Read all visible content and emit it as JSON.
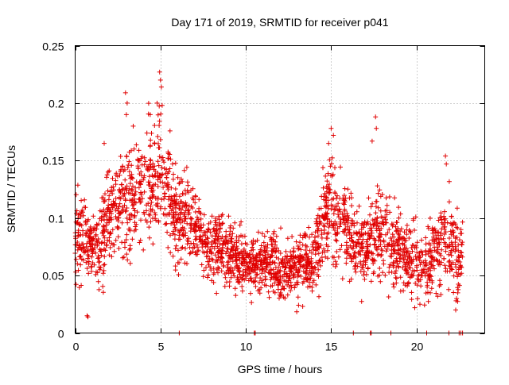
{
  "chart_data": {
    "type": "scatter",
    "title": "Day 171 of 2019, SRMTID for receiver p041",
    "xlabel": "GPS time / hours",
    "ylabel": "SRMTID / TECUs",
    "xlim": [
      0,
      24
    ],
    "ylim": [
      0,
      0.25
    ],
    "x_ticks": [
      0,
      5,
      10,
      15,
      20
    ],
    "x_tick_labels": [
      "0",
      "5",
      "10",
      "15",
      "20"
    ],
    "y_ticks": [
      0,
      0.05,
      0.1,
      0.15,
      0.2,
      0.25
    ],
    "y_tick_labels": [
      "0",
      "0.05",
      "0.1",
      "0.15",
      "0.2",
      "0.25"
    ],
    "grid": true,
    "marker": "+",
    "color": "#e00000",
    "series": [
      {
        "name": "SRMTID",
        "seed": 171,
        "dense_points_per_hour": 110,
        "envelope_hours": [
          0,
          0.5,
          1,
          1.5,
          2,
          2.5,
          3,
          3.5,
          4,
          4.5,
          5,
          5.5,
          6,
          6.5,
          7,
          7.5,
          8,
          8.5,
          9,
          9.5,
          10,
          10.5,
          11,
          11.5,
          12,
          12.5,
          13,
          13.5,
          14,
          14.5,
          15,
          15.5,
          16,
          16.5,
          17,
          17.5,
          18,
          18.5,
          19,
          19.5,
          20,
          20.5,
          21,
          21.5,
          22,
          22.5,
          22.7
        ],
        "envelope_mean": [
          0.085,
          0.08,
          0.075,
          0.08,
          0.1,
          0.11,
          0.12,
          0.12,
          0.13,
          0.13,
          0.14,
          0.12,
          0.1,
          0.1,
          0.095,
          0.085,
          0.08,
          0.075,
          0.07,
          0.065,
          0.06,
          0.055,
          0.06,
          0.065,
          0.05,
          0.055,
          0.06,
          0.065,
          0.06,
          0.095,
          0.11,
          0.1,
          0.09,
          0.075,
          0.07,
          0.08,
          0.09,
          0.075,
          0.07,
          0.07,
          0.065,
          0.055,
          0.07,
          0.075,
          0.08,
          0.06,
          0.08
        ],
        "envelope_spread": [
          0.022,
          0.02,
          0.018,
          0.022,
          0.025,
          0.025,
          0.028,
          0.025,
          0.028,
          0.028,
          0.035,
          0.03,
          0.025,
          0.023,
          0.022,
          0.02,
          0.02,
          0.018,
          0.018,
          0.017,
          0.016,
          0.016,
          0.016,
          0.018,
          0.015,
          0.016,
          0.017,
          0.017,
          0.017,
          0.025,
          0.028,
          0.025,
          0.022,
          0.02,
          0.02,
          0.022,
          0.022,
          0.02,
          0.02,
          0.02,
          0.018,
          0.018,
          0.02,
          0.02,
          0.022,
          0.02,
          0.01
        ],
        "peaks": [
          {
            "x": 0.7,
            "y": 0.015
          },
          {
            "x": 0.75,
            "y": 0.014
          },
          {
            "x": 1.7,
            "y": 0.165
          },
          {
            "x": 2.95,
            "y": 0.209
          },
          {
            "x": 3.05,
            "y": 0.2
          },
          {
            "x": 3.0,
            "y": 0.19
          },
          {
            "x": 3.4,
            "y": 0.18
          },
          {
            "x": 4.4,
            "y": 0.19
          },
          {
            "x": 4.95,
            "y": 0.227
          },
          {
            "x": 5.0,
            "y": 0.22
          },
          {
            "x": 5.05,
            "y": 0.214
          },
          {
            "x": 4.8,
            "y": 0.2
          },
          {
            "x": 5.1,
            "y": 0.198
          },
          {
            "x": 15.0,
            "y": 0.178
          },
          {
            "x": 14.85,
            "y": 0.165
          },
          {
            "x": 17.4,
            "y": 0.167
          },
          {
            "x": 17.6,
            "y": 0.188
          },
          {
            "x": 17.65,
            "y": 0.178
          },
          {
            "x": 21.7,
            "y": 0.154
          },
          {
            "x": 21.75,
            "y": 0.147
          },
          {
            "x": 22.3,
            "y": 0.02
          },
          {
            "x": 22.35,
            "y": 0.03
          },
          {
            "x": 20.2,
            "y": 0.025
          },
          {
            "x": 19.9,
            "y": 0.022
          }
        ],
        "zero_points": [
          6.1,
          10.5,
          10.55,
          16.3,
          17.3,
          17.35,
          18.5,
          20.6,
          21.9,
          22.5,
          22.6,
          22.7
        ]
      }
    ]
  }
}
